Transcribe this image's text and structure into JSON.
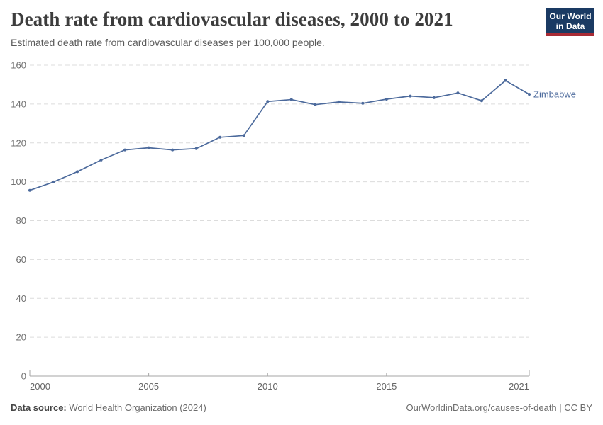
{
  "header": {
    "title": "Death rate from cardiovascular diseases, 2000 to 2021",
    "subtitle": "Estimated death rate from cardiovascular diseases per 100,000 people.",
    "logo": {
      "line1": "Our World",
      "line2": "in Data",
      "bg_color": "#1a3a63",
      "accent_color": "#a82b35"
    }
  },
  "chart_data": {
    "type": "line",
    "title": "Death rate from cardiovascular diseases, 2000 to 2021",
    "subtitle": "Estimated death rate from cardiovascular diseases per 100,000 people.",
    "entity_label": "Zimbabwe",
    "series": [
      {
        "name": "Zimbabwe",
        "color": "#4C6A9C",
        "x": [
          2000,
          2001,
          2002,
          2003,
          2004,
          2005,
          2006,
          2007,
          2008,
          2009,
          2010,
          2011,
          2012,
          2013,
          2014,
          2015,
          2016,
          2017,
          2018,
          2019,
          2020,
          2021
        ],
        "values": [
          95.6,
          99.9,
          105.2,
          111.2,
          116.4,
          117.5,
          116.4,
          117.1,
          122.9,
          123.8,
          141.3,
          142.3,
          139.7,
          141.1,
          140.4,
          142.5,
          144.1,
          143.3,
          145.7,
          141.7,
          152.1,
          145.0
        ]
      }
    ],
    "xlim": [
      2000,
      2021
    ],
    "ylim": [
      0,
      160
    ],
    "x_ticks": [
      2000,
      2005,
      2010,
      2015,
      2021
    ],
    "y_ticks": [
      0,
      20,
      40,
      60,
      80,
      100,
      120,
      140,
      160
    ],
    "grid": "horizontal-dashed",
    "legend_position": "end-of-line-label",
    "xlabel": "",
    "ylabel": ""
  },
  "footer": {
    "datasource_label": "Data source:",
    "datasource_value": "World Health Organization (2024)",
    "credit": "OurWorldinData.org/causes-of-death | CC BY"
  }
}
